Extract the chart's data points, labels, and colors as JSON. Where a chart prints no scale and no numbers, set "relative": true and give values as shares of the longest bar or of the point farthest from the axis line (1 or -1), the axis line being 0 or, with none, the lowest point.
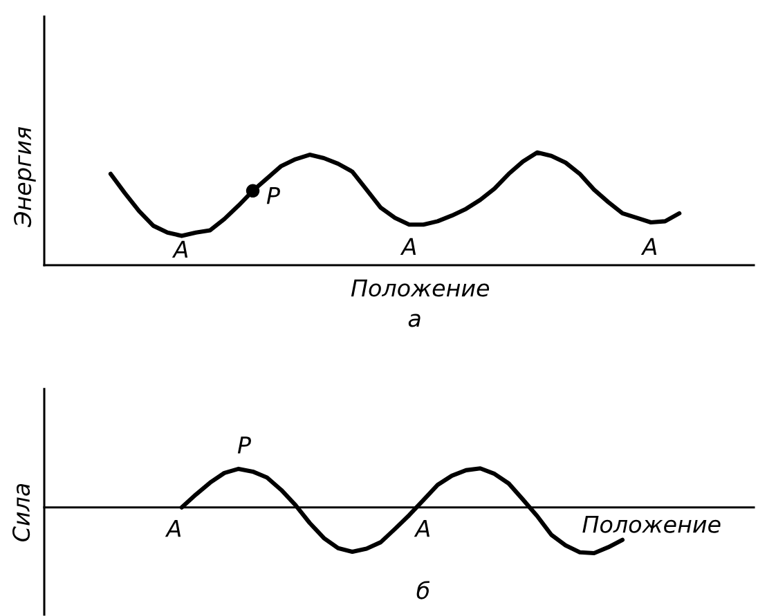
{
  "chart_data": [
    {
      "type": "line",
      "relative": true,
      "xlabel": "Положение",
      "ylabel": "Энергия",
      "categories": [
        null,
        null,
        null,
        null,
        null,
        null,
        null,
        null,
        null,
        null,
        null,
        null,
        null,
        null,
        null,
        null,
        null,
        null,
        null,
        null,
        null,
        null,
        null,
        null,
        null,
        null,
        null,
        null,
        null,
        null,
        null,
        null,
        null,
        null,
        null,
        null,
        null,
        null,
        null,
        null,
        null
      ],
      "series": [
        {
          "color": "#000000",
          "values": [
            0.81,
            0.64,
            0.48,
            0.35,
            0.29,
            0.26,
            0.29,
            0.31,
            0.41,
            0.53,
            0.66,
            0.77,
            0.88,
            0.94,
            0.98,
            0.95,
            0.9,
            0.83,
            0.67,
            0.51,
            0.42,
            0.36,
            0.36,
            0.39,
            0.44,
            0.5,
            0.58,
            0.68,
            0.81,
            0.92,
            1.0,
            0.97,
            0.91,
            0.81,
            0.67,
            0.56,
            0.46,
            0.42,
            0.38,
            0.39,
            0.46
          ]
        },
        {
          "color": "#000000",
          "marker": "circle",
          "values": [
            null,
            null,
            null,
            null,
            null,
            null,
            null,
            null,
            null,
            null,
            0.66,
            null,
            null,
            null,
            null,
            null,
            null,
            null,
            null,
            null,
            null,
            null,
            null,
            null,
            null,
            null,
            null,
            null,
            null,
            null,
            null,
            null,
            null,
            null,
            null,
            null,
            null,
            null,
            null,
            null,
            null
          ]
        }
      ],
      "annotations": [
        "P",
        "A",
        "A",
        "A",
        "а"
      ]
    },
    {
      "type": "line",
      "relative": true,
      "xlabel": "Положение",
      "ylabel": "Сила",
      "categories": [
        null,
        null,
        null,
        null,
        null,
        null,
        null,
        null,
        null,
        null,
        null,
        null,
        null,
        null,
        null,
        null,
        null,
        null,
        null,
        null,
        null,
        null,
        null,
        null,
        null,
        null,
        null,
        null,
        null,
        null,
        null,
        null,
        null,
        null,
        null,
        null,
        null,
        null,
        null,
        null,
        null
      ],
      "series": [
        {
          "color": "#000000",
          "values": [
            null,
            null,
            null,
            null,
            null,
            0,
            0.28,
            0.54,
            0.75,
            0.84,
            0.78,
            0.65,
            0.38,
            0.05,
            -0.34,
            -0.67,
            -0.89,
            -0.97,
            -0.9,
            -0.76,
            -0.47,
            -0.17,
            0.16,
            0.49,
            0.69,
            0.81,
            0.85,
            0.73,
            0.52,
            0.17,
            -0.19,
            -0.6,
            -0.83,
            -0.98,
            -1.0,
            -0.87,
            -0.71,
            null,
            null,
            null,
            null
          ]
        }
      ],
      "annotations": [
        "P",
        "A",
        "A",
        "б"
      ]
    }
  ]
}
